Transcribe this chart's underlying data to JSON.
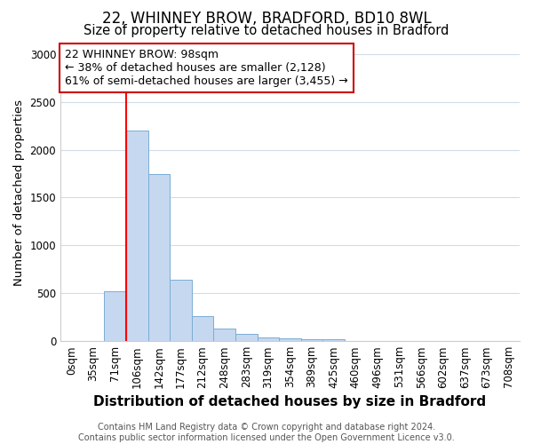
{
  "title1": "22, WHINNEY BROW, BRADFORD, BD10 8WL",
  "title2": "Size of property relative to detached houses in Bradford",
  "xlabel": "Distribution of detached houses by size in Bradford",
  "ylabel": "Number of detached properties",
  "categories": [
    "0sqm",
    "35sqm",
    "71sqm",
    "106sqm",
    "142sqm",
    "177sqm",
    "212sqm",
    "248sqm",
    "283sqm",
    "319sqm",
    "354sqm",
    "389sqm",
    "425sqm",
    "460sqm",
    "496sqm",
    "531sqm",
    "566sqm",
    "602sqm",
    "637sqm",
    "673sqm",
    "708sqm"
  ],
  "values": [
    0,
    0,
    520,
    2200,
    1750,
    640,
    260,
    130,
    80,
    35,
    25,
    20,
    20,
    0,
    5,
    0,
    0,
    0,
    0,
    0,
    0
  ],
  "bar_color": "#c5d8f0",
  "bar_edge_color": "#7aadd4",
  "ylim": [
    0,
    3100
  ],
  "yticks": [
    0,
    500,
    1000,
    1500,
    2000,
    2500,
    3000
  ],
  "red_line_x": 2.5,
  "annotation_text": "22 WHINNEY BROW: 98sqm\n← 38% of detached houses are smaller (2,128)\n61% of semi-detached houses are larger (3,455) →",
  "annotation_box_color": "#ffffff",
  "annotation_box_edgecolor": "#cc0000",
  "footnote": "Contains HM Land Registry data © Crown copyright and database right 2024.\nContains public sector information licensed under the Open Government Licence v3.0.",
  "title1_fontsize": 12,
  "title2_fontsize": 10.5,
  "xlabel_fontsize": 11,
  "ylabel_fontsize": 9.5,
  "tick_fontsize": 8.5,
  "annot_fontsize": 9,
  "footnote_fontsize": 7,
  "background_color": "#ffffff",
  "grid_color": "#d0dde8"
}
